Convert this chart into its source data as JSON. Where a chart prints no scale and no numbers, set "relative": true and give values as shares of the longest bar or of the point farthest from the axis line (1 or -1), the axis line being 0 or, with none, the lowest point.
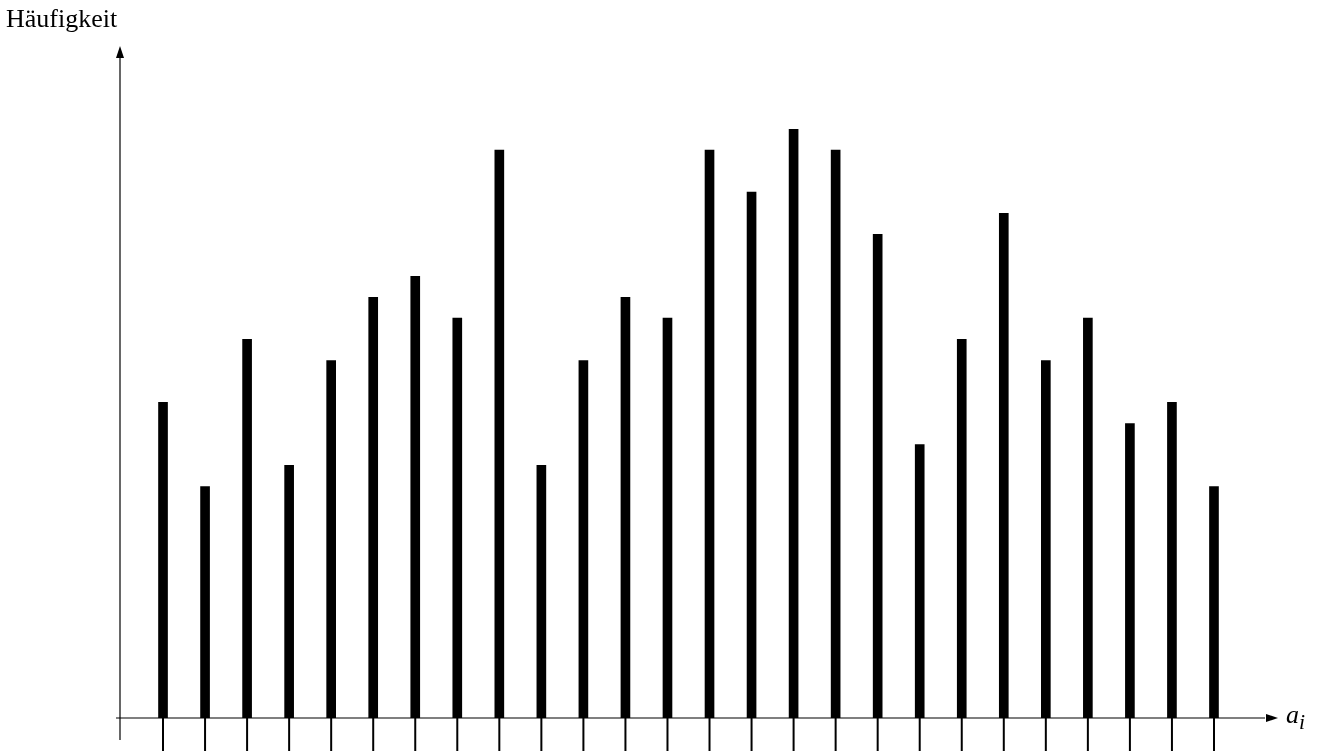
{
  "chart_data": {
    "type": "bar",
    "relative": true,
    "ylabel": "Häufigkeit",
    "xlabel": "a$_{i}$",
    "color": "#000000",
    "legend": false,
    "categories": [
      null,
      null,
      null,
      null,
      null,
      null,
      null,
      null,
      null,
      null,
      null,
      null,
      null,
      null,
      null,
      null,
      null,
      null,
      null,
      null,
      null,
      null,
      null,
      null,
      null,
      null
    ],
    "values": [
      0.536,
      0.393,
      0.643,
      0.429,
      0.607,
      0.714,
      0.75,
      0.679,
      0.964,
      0.429,
      0.607,
      0.714,
      0.679,
      0.964,
      0.893,
      1,
      0.964,
      0.821,
      0.464,
      0.643,
      0.857,
      0.607,
      0.679,
      0.5,
      0.536,
      0.393
    ]
  }
}
